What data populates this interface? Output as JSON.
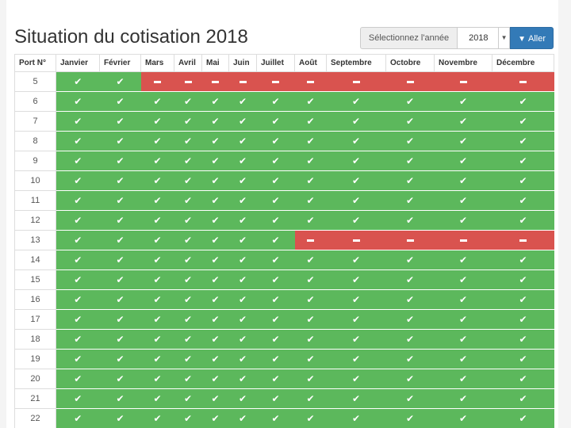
{
  "header": {
    "title": "Situation du cotisation 2018",
    "year_label": "Sélectionnez l'année",
    "year_value": "2018",
    "go_label": "Aller"
  },
  "table": {
    "columns": [
      "Port N°",
      "Janvier",
      "Février",
      "Mars",
      "Avril",
      "Mai",
      "Juin",
      "Juillet",
      "Août",
      "Septembre",
      "Octobre",
      "Novembre",
      "Décembre"
    ],
    "paid_symbol": "✔",
    "rows": [
      {
        "port": "5",
        "months": [
          1,
          1,
          0,
          0,
          0,
          0,
          0,
          0,
          0,
          0,
          0,
          0
        ]
      },
      {
        "port": "6",
        "months": [
          1,
          1,
          1,
          1,
          1,
          1,
          1,
          1,
          1,
          1,
          1,
          1
        ]
      },
      {
        "port": "7",
        "months": [
          1,
          1,
          1,
          1,
          1,
          1,
          1,
          1,
          1,
          1,
          1,
          1
        ]
      },
      {
        "port": "8",
        "months": [
          1,
          1,
          1,
          1,
          1,
          1,
          1,
          1,
          1,
          1,
          1,
          1
        ]
      },
      {
        "port": "9",
        "months": [
          1,
          1,
          1,
          1,
          1,
          1,
          1,
          1,
          1,
          1,
          1,
          1
        ]
      },
      {
        "port": "10",
        "months": [
          1,
          1,
          1,
          1,
          1,
          1,
          1,
          1,
          1,
          1,
          1,
          1
        ]
      },
      {
        "port": "11",
        "months": [
          1,
          1,
          1,
          1,
          1,
          1,
          1,
          1,
          1,
          1,
          1,
          1
        ]
      },
      {
        "port": "12",
        "months": [
          1,
          1,
          1,
          1,
          1,
          1,
          1,
          1,
          1,
          1,
          1,
          1
        ]
      },
      {
        "port": "13",
        "months": [
          1,
          1,
          1,
          1,
          1,
          1,
          1,
          0,
          0,
          0,
          0,
          0
        ]
      },
      {
        "port": "14",
        "months": [
          1,
          1,
          1,
          1,
          1,
          1,
          1,
          1,
          1,
          1,
          1,
          1
        ]
      },
      {
        "port": "15",
        "months": [
          1,
          1,
          1,
          1,
          1,
          1,
          1,
          1,
          1,
          1,
          1,
          1
        ]
      },
      {
        "port": "16",
        "months": [
          1,
          1,
          1,
          1,
          1,
          1,
          1,
          1,
          1,
          1,
          1,
          1
        ]
      },
      {
        "port": "17",
        "months": [
          1,
          1,
          1,
          1,
          1,
          1,
          1,
          1,
          1,
          1,
          1,
          1
        ]
      },
      {
        "port": "18",
        "months": [
          1,
          1,
          1,
          1,
          1,
          1,
          1,
          1,
          1,
          1,
          1,
          1
        ]
      },
      {
        "port": "19",
        "months": [
          1,
          1,
          1,
          1,
          1,
          1,
          1,
          1,
          1,
          1,
          1,
          1
        ]
      },
      {
        "port": "20",
        "months": [
          1,
          1,
          1,
          1,
          1,
          1,
          1,
          1,
          1,
          1,
          1,
          1
        ]
      },
      {
        "port": "21",
        "months": [
          1,
          1,
          1,
          1,
          1,
          1,
          1,
          1,
          1,
          1,
          1,
          1
        ]
      },
      {
        "port": "22",
        "months": [
          1,
          1,
          1,
          1,
          1,
          1,
          1,
          1,
          1,
          1,
          1,
          1
        ]
      }
    ]
  },
  "colors": {
    "paid": "#5cb85c",
    "unpaid": "#d9534f",
    "primary": "#337ab7"
  },
  "icons": {
    "paid": "check-icon",
    "unpaid": "dash-icon",
    "go": "filter-icon",
    "select": "chevron-down-icon"
  }
}
